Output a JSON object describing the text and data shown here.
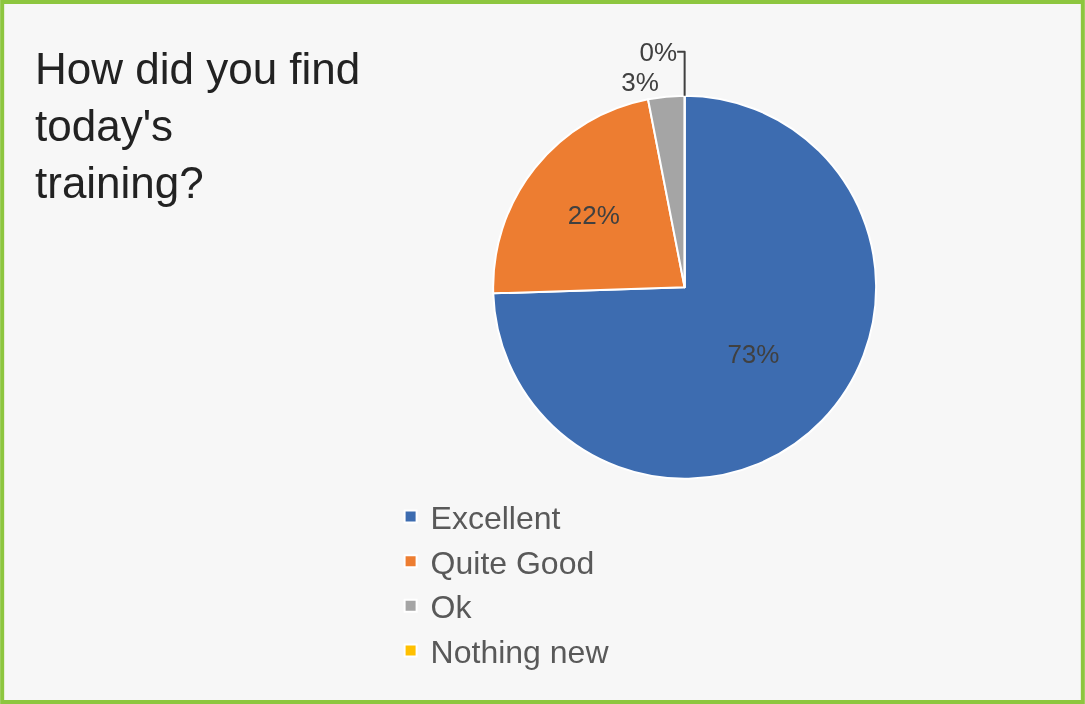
{
  "chart_data": {
    "type": "pie",
    "title": "How did you find today's training?",
    "categories": [
      "Excellent",
      "Quite Good",
      "Ok",
      "Nothing new"
    ],
    "values": [
      73,
      22,
      3,
      0
    ],
    "value_labels": [
      "73%",
      "22%",
      "3%",
      "0%"
    ],
    "colors": [
      "#3d6cb0",
      "#ed7d31",
      "#a5a5a5",
      "#ffc000"
    ],
    "legend": "bottom"
  }
}
